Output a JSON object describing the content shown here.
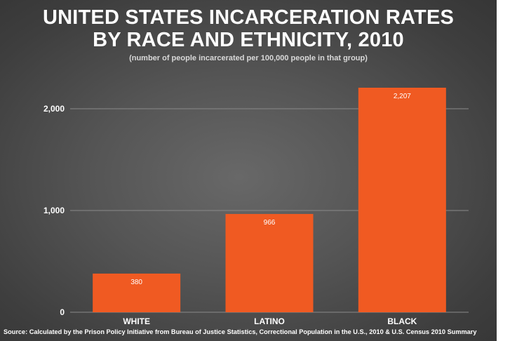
{
  "chart_data": {
    "type": "bar",
    "title_line1": "UNITED STATES INCARCERATION RATES",
    "title_line2": "BY RACE AND ETHNICITY, 2010",
    "subtitle": "(number of people incarcerated per 100,000 people in that group)",
    "categories": [
      "WHITE",
      "LATINO",
      "BLACK"
    ],
    "values": [
      380,
      966,
      2207
    ],
    "value_labels": [
      "380",
      "966",
      "2,207"
    ],
    "y_ticks": [
      0,
      1000,
      2000
    ],
    "y_tick_labels": [
      "0",
      "1,000",
      "2,000"
    ],
    "ylim": [
      0,
      2207
    ],
    "xlabel": "",
    "ylabel": "",
    "grid": true,
    "source": "Source: Calculated by the Prison Policy Initiative from Bureau of Justice Statistics, Correctional Population in the U.S., 2010 & U.S. Census 2010 Summary",
    "colors": {
      "bar": "#f05a22",
      "background": "#4a4a4a",
      "text": "#ffffff",
      "grid": "#8a8a8a"
    }
  }
}
